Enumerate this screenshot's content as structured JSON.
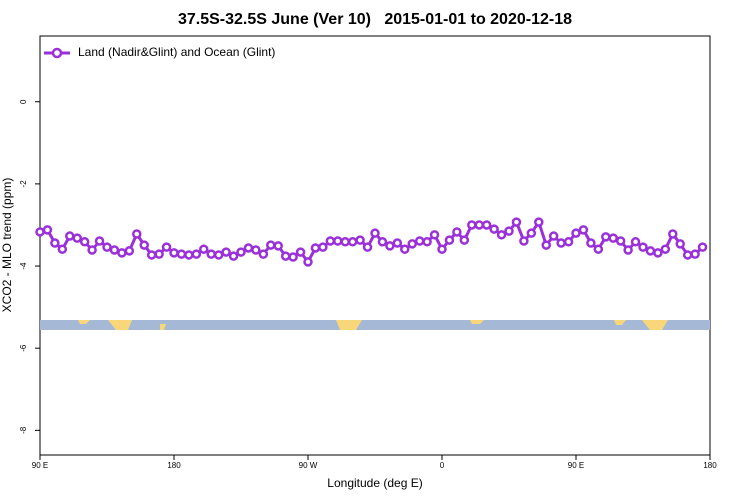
{
  "chart_data": {
    "type": "line",
    "title": "37.5S-32.5S June (Ver 10)   2015-01-01 to 2020-12-18",
    "xlabel": "Longitude (deg E)",
    "ylabel": "XCO2 - MLO trend (ppm)",
    "x": [
      90,
      95,
      100,
      105,
      110,
      115,
      120,
      125,
      130,
      135,
      140,
      145,
      150,
      155,
      160,
      165,
      170,
      175,
      180,
      185,
      190,
      195,
      200,
      205,
      210,
      215,
      220,
      225,
      230,
      235,
      240,
      245,
      250,
      255,
      260,
      265,
      270,
      275,
      280,
      285,
      290,
      295,
      300,
      305,
      310,
      315,
      320,
      325,
      330,
      335,
      340,
      345,
      350,
      355,
      360,
      365,
      370,
      375,
      380,
      385,
      390,
      395,
      400,
      405,
      410,
      415,
      420,
      425,
      430,
      435,
      440,
      445,
      450,
      455,
      460,
      465,
      470,
      475,
      480,
      485,
      490,
      495,
      500,
      505,
      510,
      515,
      520,
      525,
      530,
      535
    ],
    "series": [
      {
        "name": "Land (Nadir&Glint) and Ocean (Glint)",
        "color": "#9b30d9",
        "values": [
          -3.17,
          -3.12,
          -3.44,
          -3.59,
          -3.27,
          -3.32,
          -3.41,
          -3.61,
          -3.39,
          -3.54,
          -3.61,
          -3.68,
          -3.63,
          -3.22,
          -3.49,
          -3.73,
          -3.71,
          -3.54,
          -3.68,
          -3.71,
          -3.73,
          -3.71,
          -3.59,
          -3.71,
          -3.73,
          -3.66,
          -3.76,
          -3.66,
          -3.56,
          -3.61,
          -3.71,
          -3.49,
          -3.51,
          -3.76,
          -3.78,
          -3.66,
          -3.9,
          -3.56,
          -3.54,
          -3.39,
          -3.39,
          -3.41,
          -3.41,
          -3.37,
          -3.54,
          -3.2,
          -3.41,
          -3.51,
          -3.44,
          -3.59,
          -3.46,
          -3.39,
          -3.41,
          -3.24,
          -3.59,
          -3.37,
          -3.17,
          -3.37,
          -3.0,
          -3.0,
          -3.0,
          -3.1,
          -3.24,
          -3.15,
          -2.93,
          -3.39,
          -3.2,
          -2.93,
          -3.49,
          -3.27,
          -3.44,
          -3.41,
          -3.2,
          -3.12,
          -3.44,
          -3.59,
          -3.29,
          -3.32,
          -3.39,
          -3.61,
          -3.41,
          -3.54,
          -3.63,
          -3.68,
          -3.59,
          -3.22,
          -3.46,
          -3.73,
          -3.71,
          -3.54
        ]
      }
    ],
    "xlim": [
      90,
      540
    ],
    "xticks": [
      {
        "value": 90,
        "label": "90 E"
      },
      180,
      {
        "value": 270,
        "label": "90 W"
      },
      {
        "value": 360,
        "label": "0"
      },
      {
        "value": 450,
        "label": "90 E"
      },
      {
        "value": 540,
        "label": "180"
      }
    ],
    "ylim": [
      -8.6,
      1.6
    ],
    "yticks": [
      0,
      -2,
      -4,
      -6,
      -8
    ],
    "legend": "top-left"
  }
}
